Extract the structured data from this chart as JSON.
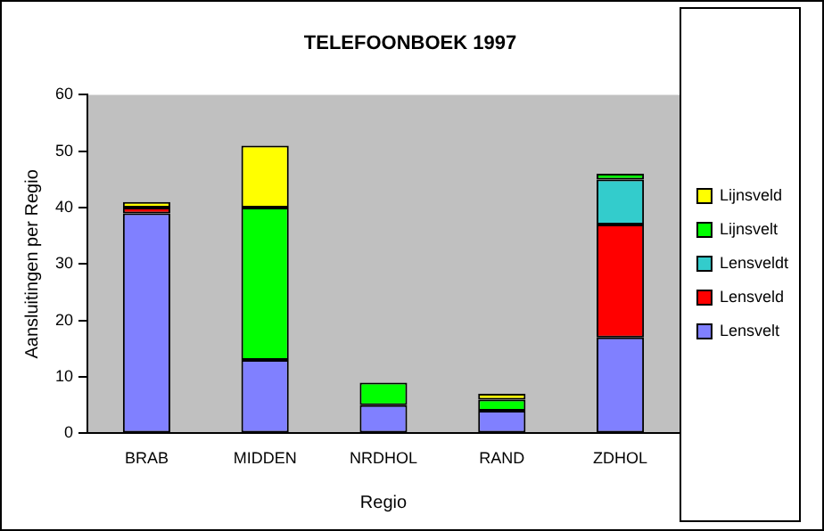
{
  "chart_data": {
    "type": "bar",
    "title": "TELEFOONBOEK 1997",
    "xlabel": "Regio",
    "ylabel": "Aansluitingen per Regio",
    "categories": [
      "BRAB",
      "MIDDEN",
      "NRDHOL",
      "RAND",
      "ZDHOL"
    ],
    "stacked": true,
    "ylim": [
      0,
      60
    ],
    "yticks": [
      0,
      10,
      20,
      30,
      40,
      50,
      60
    ],
    "grid": false,
    "legend": "right",
    "series": [
      {
        "name": "Lensvelt",
        "color": "#8080ff",
        "values": [
          39,
          13,
          5,
          4,
          17
        ]
      },
      {
        "name": "Lensveld",
        "color": "#ff0000",
        "values": [
          1,
          0,
          0,
          0,
          20
        ]
      },
      {
        "name": "Lensveldt",
        "color": "#33cccc",
        "values": [
          0,
          0,
          0,
          0,
          8
        ]
      },
      {
        "name": "Lijnsvelt",
        "color": "#00ff00",
        "values": [
          0,
          27,
          4,
          2,
          1
        ]
      },
      {
        "name": "Lijnsveld",
        "color": "#ffff00",
        "values": [
          1,
          11,
          0,
          1,
          0
        ]
      }
    ]
  }
}
